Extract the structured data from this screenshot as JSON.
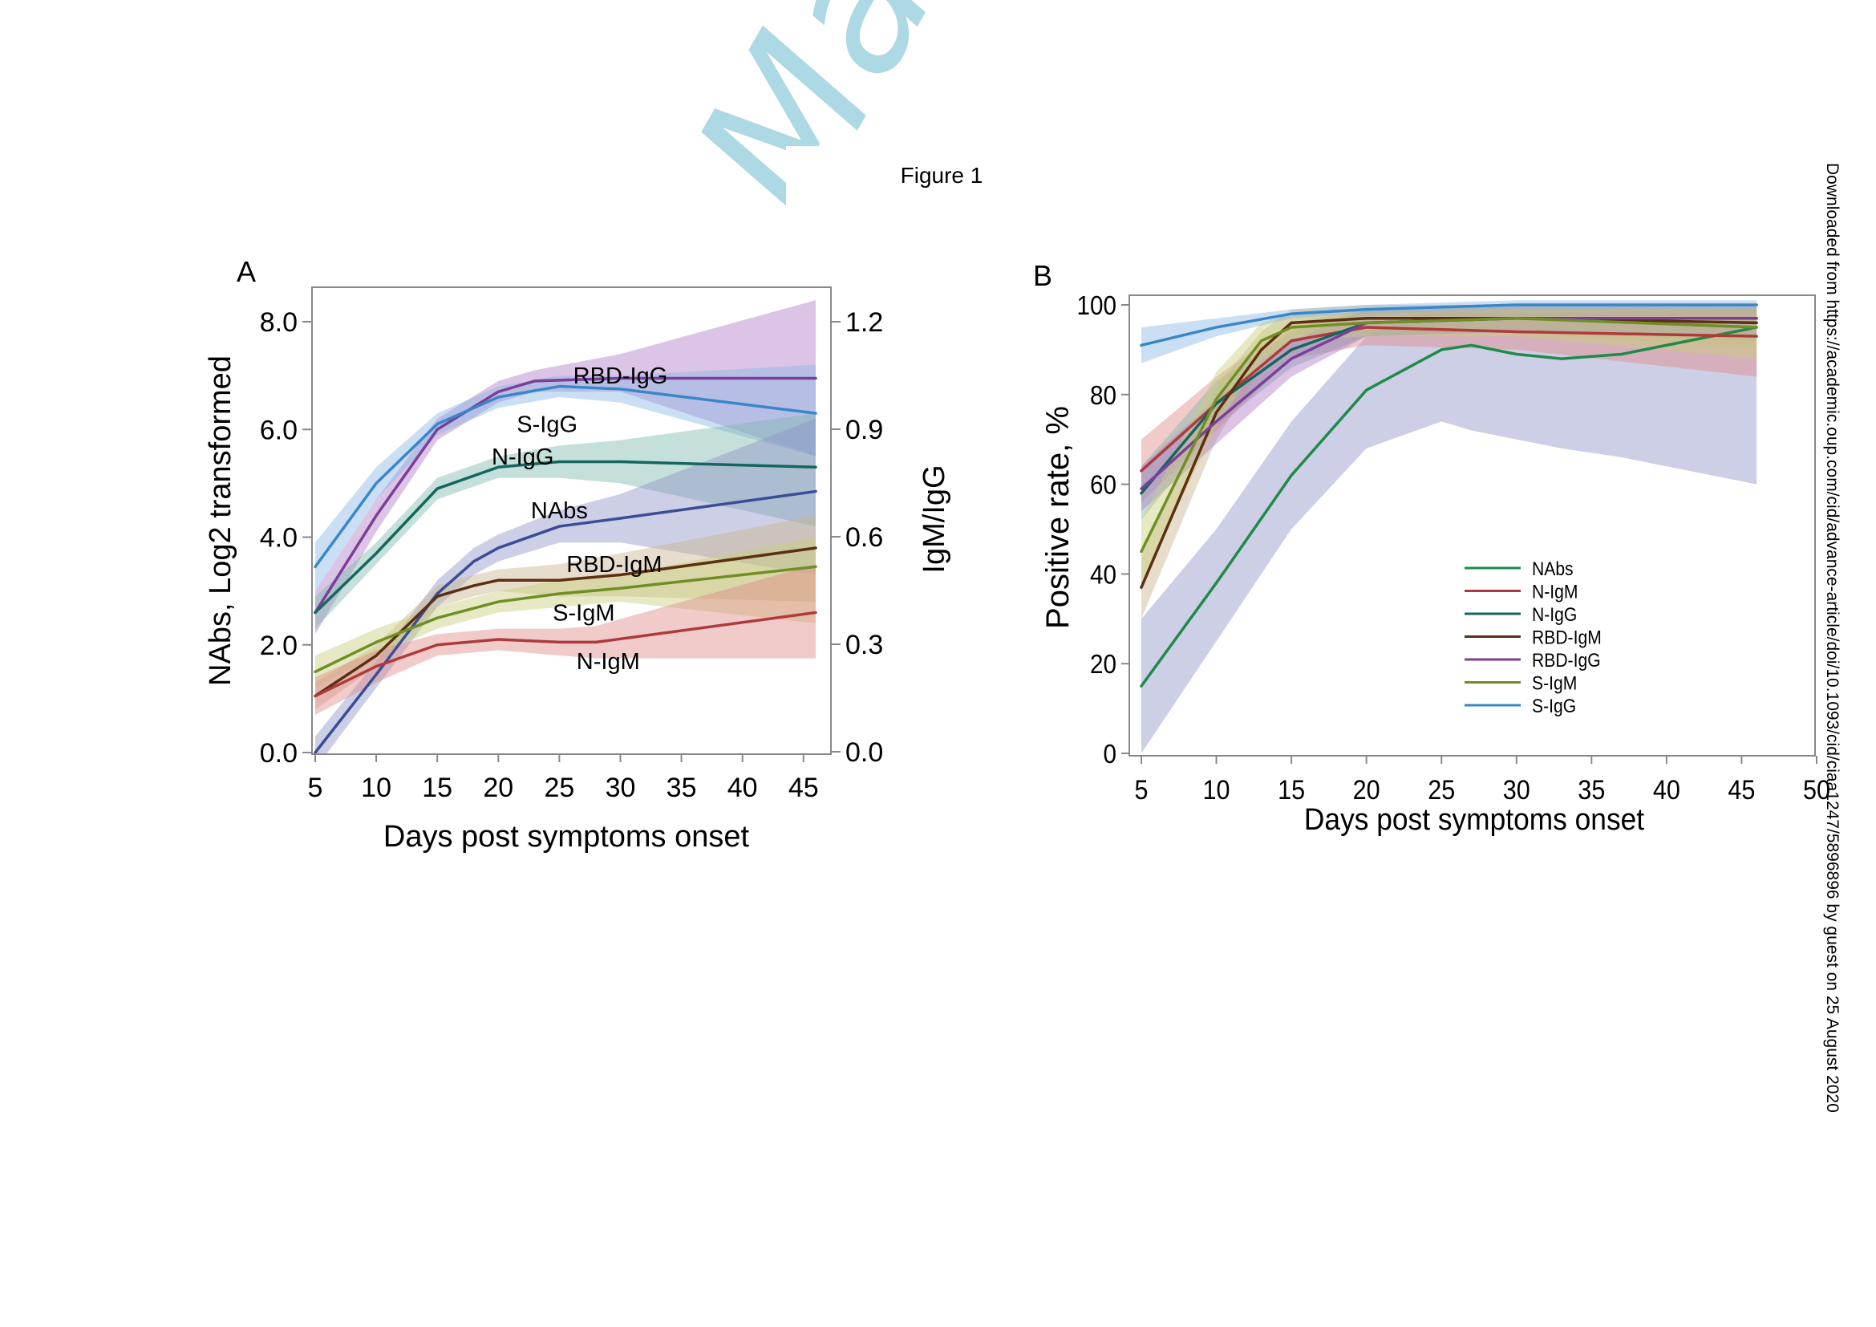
{
  "watermark": {
    "text": "Manuscript",
    "color": "#9fd3e0"
  },
  "figure_title": "Figure 1",
  "side_note": "Downloaded from https://academic.oup.com/cid/advance-article/doi/10.1093/cid/ciaa1247/5896896 by guest on 25 August 2020",
  "chart_data": [
    {
      "panel": "A",
      "type": "line",
      "title": "",
      "xlabel": "Days post symptoms onset",
      "ylabel": "NAbs, Log2 transformed",
      "ylabel_right": "IgM/IgG",
      "xlim": [
        5,
        47
      ],
      "ylim": [
        0,
        8.7
      ],
      "ylim_right": [
        0,
        1.305
      ],
      "xticks": [
        "5",
        "10",
        "15",
        "20",
        "25",
        "30",
        "35",
        "40",
        "45"
      ],
      "yticks": [
        "0.0",
        "2.0",
        "4.0",
        "6.0",
        "8.0"
      ],
      "yticks_right": [
        "0.0",
        "0.3",
        "0.6",
        "0.9",
        "1.2"
      ],
      "series": [
        {
          "name": "RBD-IgG",
          "color": "#7b3f99",
          "band_color": "#b07cc6",
          "x": [
            5,
            10,
            15,
            20,
            23,
            30,
            46
          ],
          "y": [
            2.6,
            4.4,
            6.0,
            6.7,
            6.9,
            6.95,
            6.95
          ],
          "lower": [
            2.2,
            4.1,
            5.8,
            6.5,
            6.7,
            6.7,
            5.5
          ],
          "upper": [
            3.0,
            4.7,
            6.2,
            6.9,
            7.1,
            7.4,
            8.4
          ]
        },
        {
          "name": "S-IgG",
          "color": "#3a87c8",
          "band_color": "#8cb8e6",
          "x": [
            5,
            10,
            15,
            20,
            25,
            30,
            46
          ],
          "y": [
            3.45,
            5.0,
            6.1,
            6.6,
            6.8,
            6.75,
            6.3
          ],
          "lower": [
            3.0,
            4.7,
            5.9,
            6.4,
            6.6,
            6.5,
            5.5
          ],
          "upper": [
            3.9,
            5.3,
            6.3,
            6.8,
            7.0,
            7.0,
            7.2
          ]
        },
        {
          "name": "N-IgG",
          "color": "#15665e",
          "band_color": "#7fb9ad",
          "x": [
            5,
            10,
            15,
            20,
            25,
            30,
            46
          ],
          "y": [
            2.6,
            3.7,
            4.9,
            5.3,
            5.4,
            5.4,
            5.3
          ],
          "lower": [
            2.3,
            3.5,
            4.7,
            5.1,
            5.1,
            5.0,
            4.2
          ],
          "upper": [
            2.9,
            3.9,
            5.1,
            5.5,
            5.7,
            5.8,
            6.3
          ]
        },
        {
          "name": "NAbs",
          "color": "#3b4d96",
          "band_color": "#8d95c8",
          "x": [
            5,
            10,
            15,
            18,
            20,
            25,
            30,
            46
          ],
          "y": [
            0.0,
            1.45,
            2.95,
            3.55,
            3.8,
            4.2,
            4.35,
            4.85
          ],
          "lower": [
            -0.3,
            1.2,
            2.7,
            3.3,
            3.55,
            3.9,
            3.9,
            3.3
          ],
          "upper": [
            0.3,
            1.7,
            3.2,
            3.8,
            4.05,
            4.5,
            4.8,
            6.2
          ]
        },
        {
          "name": "RBD-IgM",
          "color": "#5c2e12",
          "band_color": "#c9b48e",
          "x": [
            5,
            10,
            15,
            18,
            20,
            25,
            30,
            46
          ],
          "y": [
            1.05,
            1.8,
            2.9,
            3.1,
            3.2,
            3.2,
            3.3,
            3.8
          ],
          "lower": [
            0.8,
            1.6,
            2.7,
            2.9,
            3.0,
            2.9,
            2.9,
            2.8
          ],
          "upper": [
            1.3,
            2.0,
            3.1,
            3.3,
            3.4,
            3.5,
            3.7,
            4.4
          ]
        },
        {
          "name": "S-IgM",
          "color": "#6f8f25",
          "band_color": "#c8cf7a",
          "x": [
            5,
            10,
            15,
            20,
            25,
            30,
            46
          ],
          "y": [
            1.5,
            2.05,
            2.5,
            2.8,
            2.95,
            3.05,
            3.45
          ],
          "lower": [
            1.2,
            1.8,
            2.3,
            2.6,
            2.7,
            2.8,
            2.4
          ],
          "upper": [
            1.8,
            2.3,
            2.7,
            3.0,
            3.2,
            3.3,
            4.0
          ]
        },
        {
          "name": "N-IgM",
          "color": "#b03a3a",
          "band_color": "#e08a8a",
          "x": [
            5,
            10,
            15,
            20,
            25,
            28,
            46
          ],
          "y": [
            1.05,
            1.6,
            2.0,
            2.1,
            2.05,
            2.05,
            2.6
          ],
          "lower": [
            0.7,
            1.3,
            1.8,
            1.9,
            1.8,
            1.75,
            1.75
          ],
          "upper": [
            1.4,
            1.9,
            2.2,
            2.3,
            2.3,
            2.35,
            3.5
          ]
        }
      ],
      "annotations": [
        {
          "text": "RBD-IgG",
          "x": 30,
          "y": 7.0
        },
        {
          "text": "S-IgG",
          "x": 24,
          "y": 6.1
        },
        {
          "text": "N-IgG",
          "x": 22,
          "y": 5.5
        },
        {
          "text": "NAbs",
          "x": 25,
          "y": 4.5
        },
        {
          "text": "RBD-IgM",
          "x": 29.5,
          "y": 3.5
        },
        {
          "text": "S-IgM",
          "x": 27,
          "y": 2.6
        },
        {
          "text": "N-IgM",
          "x": 29,
          "y": 1.7
        }
      ]
    },
    {
      "panel": "B",
      "type": "line",
      "title": "",
      "xlabel": "Days post symptoms onset",
      "ylabel": "Positive rate, %",
      "xlim": [
        4.7,
        50.5
      ],
      "ylim": [
        0,
        101.5
      ],
      "xticks": [
        "5",
        "10",
        "15",
        "20",
        "25",
        "30",
        "35",
        "40",
        "45",
        "50"
      ],
      "yticks": [
        "0",
        "20",
        "40",
        "60",
        "80",
        "100"
      ],
      "legend_position": "bottom-center",
      "series": [
        {
          "name": "NAbs",
          "color": "#1f8a4a",
          "band_color": "#8d95c8",
          "x": [
            5,
            10,
            15,
            20,
            25,
            27,
            30,
            33,
            37,
            46
          ],
          "y": [
            15,
            38,
            62,
            81,
            90,
            91,
            89,
            88,
            89,
            95
          ],
          "lower": [
            0,
            25,
            50,
            68,
            74,
            72,
            70,
            68,
            66,
            60
          ],
          "upper": [
            30,
            50,
            74,
            93,
            100,
            100,
            100,
            100,
            100,
            100
          ]
        },
        {
          "name": "N-IgM",
          "color": "#b03a3a",
          "band_color": "#e08a8a",
          "x": [
            5,
            10,
            15,
            20,
            30,
            46
          ],
          "y": [
            63,
            78,
            92,
            95,
            94,
            93
          ],
          "lower": [
            56,
            72,
            88,
            91,
            90,
            84
          ],
          "upper": [
            70,
            84,
            96,
            99,
            98,
            99
          ]
        },
        {
          "name": "N-IgG",
          "color": "#15665e",
          "band_color": "#7fb9ad",
          "x": [
            5,
            10,
            15,
            20,
            30,
            46
          ],
          "y": [
            58,
            78,
            90,
            96,
            97,
            97
          ],
          "lower": [
            52,
            73,
            86,
            93,
            94,
            92
          ],
          "upper": [
            64,
            83,
            94,
            99,
            100,
            100
          ]
        },
        {
          "name": "RBD-IgM",
          "color": "#5c2e12",
          "band_color": "#c9b48e",
          "x": [
            5,
            10,
            13,
            15,
            20,
            30,
            46
          ],
          "y": [
            37,
            76,
            90,
            96,
            97,
            97,
            96
          ],
          "lower": [
            30,
            70,
            86,
            93,
            94,
            94,
            90
          ],
          "upper": [
            44,
            82,
            94,
            99,
            100,
            100,
            100
          ]
        },
        {
          "name": "RBD-IgG",
          "color": "#7b3f99",
          "band_color": "#b07cc6",
          "x": [
            5,
            10,
            15,
            20,
            30,
            46
          ],
          "y": [
            59,
            74,
            88,
            96,
            97,
            97
          ],
          "lower": [
            54,
            69,
            84,
            93,
            94,
            93
          ],
          "upper": [
            64,
            79,
            92,
            99,
            100,
            100
          ]
        },
        {
          "name": "S-IgM",
          "color": "#6f8f25",
          "band_color": "#c8cf7a",
          "x": [
            5,
            10,
            13,
            15,
            20,
            30,
            46
          ],
          "y": [
            45,
            79,
            92,
            95,
            96,
            97,
            95
          ],
          "lower": [
            38,
            73,
            88,
            92,
            93,
            93,
            88
          ],
          "upper": [
            52,
            85,
            96,
            98,
            99,
            100,
            100
          ]
        },
        {
          "name": "S-IgG",
          "color": "#3a87c8",
          "band_color": "#8cb8e6",
          "x": [
            5,
            10,
            15,
            20,
            30,
            46
          ],
          "y": [
            91,
            95,
            98,
            99,
            100,
            100
          ],
          "lower": [
            87,
            93,
            97,
            98,
            99,
            99
          ],
          "upper": [
            95,
            97,
            99,
            100,
            101,
            101
          ]
        }
      ]
    }
  ]
}
